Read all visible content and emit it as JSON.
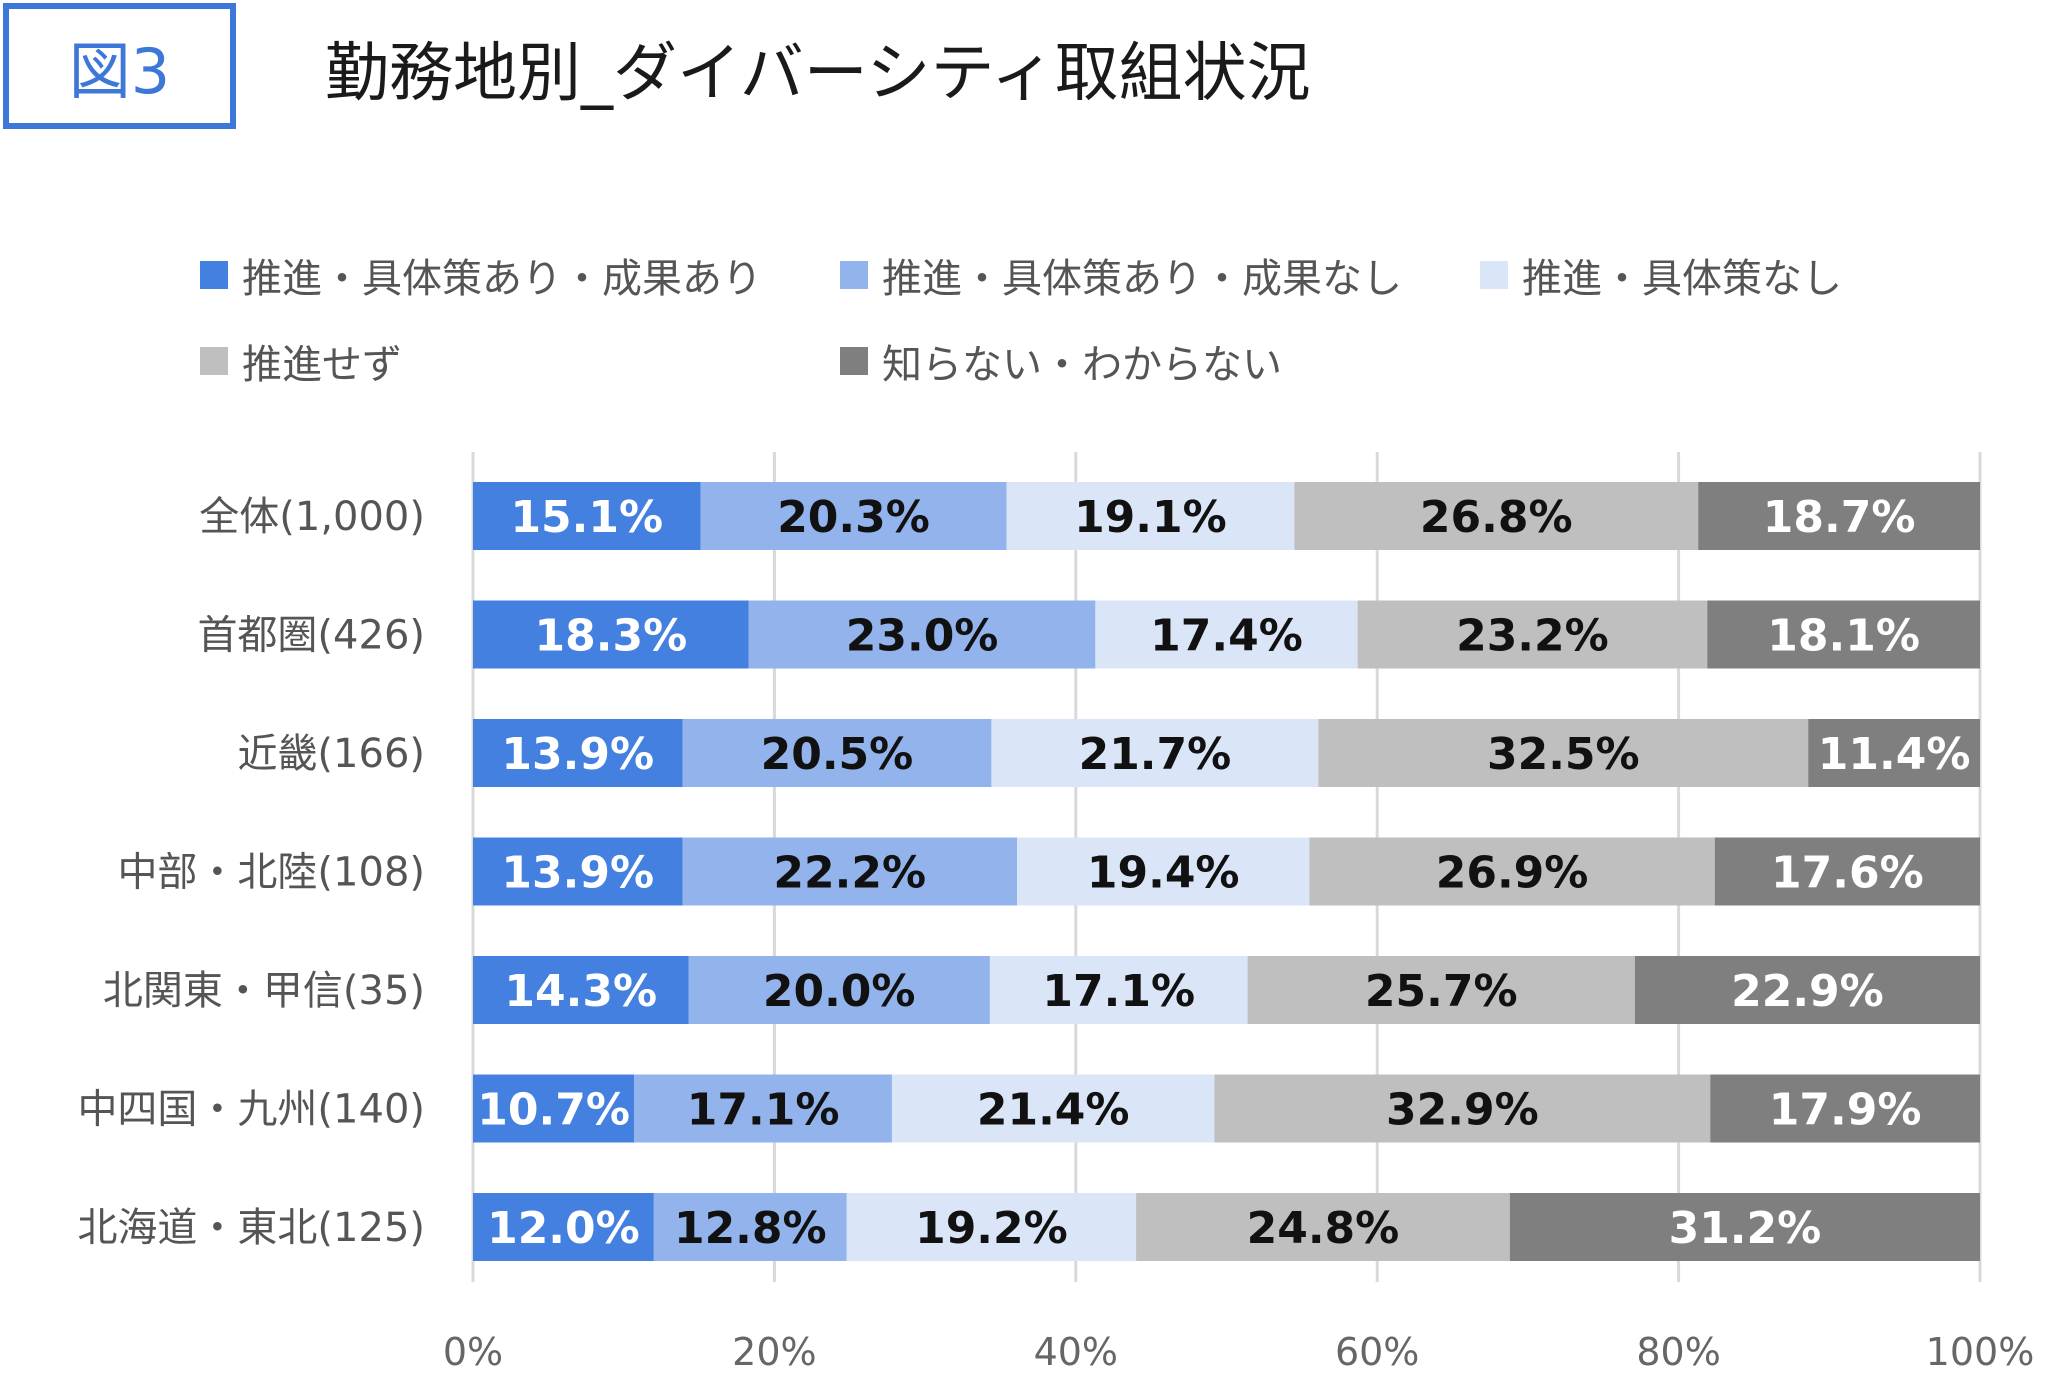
{
  "figure_label": "図3",
  "title": "勤務地別_ダイバーシティ取組状況",
  "chart_data": {
    "type": "bar",
    "orientation": "horizontal",
    "stacked": true,
    "percent_stacked": true,
    "categories": [
      "全体(1,000)",
      "首都圏(426)",
      "近畿(166)",
      "中部・北陸(108)",
      "北関東・甲信(35)",
      "中四国・九州(140)",
      "北海道・東北(125)"
    ],
    "series": [
      {
        "name": "推進・具体策あり・成果あり",
        "color": "#4480e0",
        "label_color": "#ffffff",
        "values": [
          15.1,
          18.3,
          13.9,
          13.9,
          14.3,
          10.7,
          12.0
        ],
        "labels": [
          "15.1%",
          "18.3%",
          "13.9%",
          "13.9%",
          "14.3%",
          "10.7%",
          "12.0%"
        ]
      },
      {
        "name": "推進・具体策あり・成果なし",
        "color": "#92b3ec",
        "label_color": "#111111",
        "values": [
          20.3,
          23.0,
          20.5,
          22.2,
          20.0,
          17.1,
          12.8
        ],
        "labels": [
          "20.3%",
          "23.0%",
          "20.5%",
          "22.2%",
          "20.0%",
          "17.1%",
          "12.8%"
        ]
      },
      {
        "name": "推進・具体策なし",
        "color": "#dbe5f8",
        "label_color": "#111111",
        "values": [
          19.1,
          17.4,
          21.7,
          19.4,
          17.1,
          21.4,
          19.2
        ],
        "labels": [
          "19.1%",
          "17.4%",
          "21.7%",
          "19.4%",
          "17.1%",
          "21.4%",
          "19.2%"
        ]
      },
      {
        "name": "推進せず",
        "color": "#bfbfbf",
        "label_color": "#111111",
        "values": [
          26.8,
          23.2,
          32.5,
          26.9,
          25.7,
          32.9,
          24.8
        ],
        "labels": [
          "26.8%",
          "23.2%",
          "32.5%",
          "26.9%",
          "25.7%",
          "32.9%",
          "24.8%"
        ]
      },
      {
        "name": "知らない・わからない",
        "color": "#7f7f7f",
        "label_color": "#ffffff",
        "values": [
          18.7,
          18.1,
          11.4,
          17.6,
          22.9,
          17.9,
          31.2
        ],
        "labels": [
          "18.7%",
          "18.1%",
          "11.4%",
          "17.6%",
          "22.9%",
          "17.9%",
          "31.2%"
        ]
      }
    ],
    "xlim": [
      0,
      100
    ],
    "x_ticks": [
      "0%",
      "20%",
      "40%",
      "60%",
      "80%",
      "100%"
    ],
    "grid": true,
    "legend_position": "top"
  }
}
